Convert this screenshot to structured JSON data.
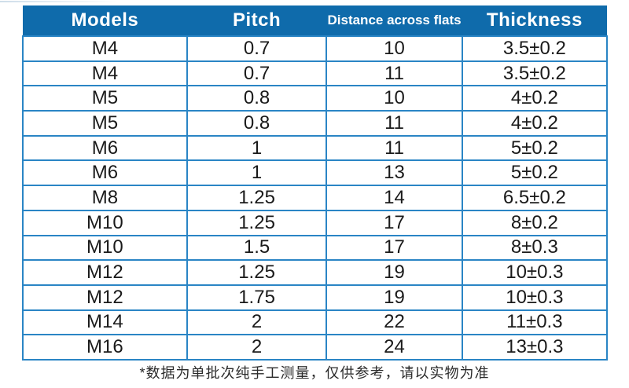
{
  "table": {
    "headers": [
      "Models",
      "Pitch",
      "Distance across flats",
      "Thickness"
    ],
    "rows": [
      [
        "M4",
        "0.7",
        "10",
        "3.5±0.2"
      ],
      [
        "M4",
        "0.7",
        "11",
        "3.5±0.2"
      ],
      [
        "M5",
        "0.8",
        "10",
        "4±0.2"
      ],
      [
        "M5",
        "0.8",
        "11",
        "4±0.2"
      ],
      [
        "M6",
        "1",
        "11",
        "5±0.2"
      ],
      [
        "M6",
        "1",
        "13",
        "5±0.2"
      ],
      [
        "M8",
        "1.25",
        "14",
        "6.5±0.2"
      ],
      [
        "M10",
        "1.25",
        "17",
        "8±0.2"
      ],
      [
        "M10",
        "1.5",
        "17",
        "8±0.3"
      ],
      [
        "M12",
        "1.25",
        "19",
        "10±0.3"
      ],
      [
        "M12",
        "1.75",
        "19",
        "10±0.3"
      ],
      [
        "M14",
        "2",
        "22",
        "11±0.3"
      ],
      [
        "M16",
        "2",
        "24",
        "13±0.3"
      ]
    ]
  },
  "page": {
    "footer_note": "*数据为单批次纯手工测量，仅供参考，请以实物为准"
  },
  "colors": {
    "header_bg": "#0f6bab",
    "header_text": "#ffffff",
    "border": "#2a85c5",
    "cell_text": "#1a1a1a",
    "note_text": "#2b2b2b"
  }
}
